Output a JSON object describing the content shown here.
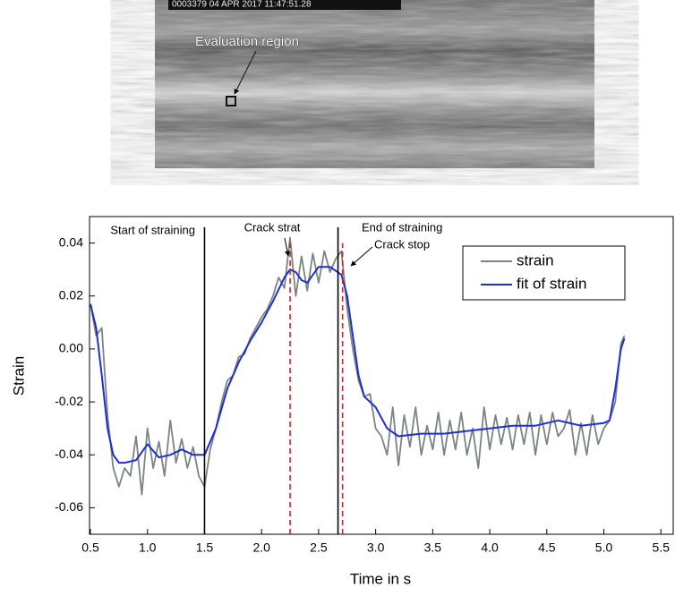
{
  "figure_image": {
    "timestamp": "0003379 04 APR 2017 11:47:51.28",
    "annotation": "Evaluation region"
  },
  "chart_data": {
    "type": "line",
    "x_label": "Time in s",
    "y_label": "Strain",
    "xlim": [
      0.5,
      5.6
    ],
    "ylim": [
      -0.07,
      0.05
    ],
    "xticks": [
      0.5,
      {
        "value": 1,
        "label": "1.0"
      },
      1.5,
      {
        "value": 2,
        "label": "2.0"
      },
      2.5,
      {
        "value": 3,
        "label": "3.0"
      },
      3.5,
      {
        "value": 4,
        "label": "4.0"
      },
      4.5,
      {
        "value": 5,
        "label": "5.0"
      },
      5.5
    ],
    "yticks": [
      -0.06,
      -0.04,
      -0.02,
      {
        "value": 0,
        "label": "0.00"
      },
      0.02,
      0.04
    ],
    "legend": "upper right",
    "series": [
      {
        "name": "strain",
        "color": "#7a8580",
        "x": [
          0.5,
          0.55,
          0.6,
          0.65,
          0.7,
          0.75,
          0.8,
          0.85,
          0.9,
          0.95,
          1.0,
          1.05,
          1.1,
          1.15,
          1.2,
          1.25,
          1.3,
          1.35,
          1.4,
          1.45,
          1.5,
          1.55,
          1.6,
          1.65,
          1.7,
          1.75,
          1.8,
          1.85,
          1.9,
          1.95,
          2.0,
          2.05,
          2.1,
          2.15,
          2.2,
          2.25,
          2.3,
          2.35,
          2.4,
          2.45,
          2.5,
          2.55,
          2.6,
          2.65,
          2.7,
          2.75,
          2.8,
          2.85,
          2.9,
          2.95,
          3.0,
          3.05,
          3.1,
          3.15,
          3.2,
          3.25,
          3.3,
          3.35,
          3.4,
          3.45,
          3.5,
          3.55,
          3.6,
          3.65,
          3.7,
          3.75,
          3.8,
          3.85,
          3.9,
          3.95,
          4.0,
          4.05,
          4.1,
          4.15,
          4.2,
          4.25,
          4.3,
          4.35,
          4.4,
          4.45,
          4.5,
          4.55,
          4.6,
          4.65,
          4.7,
          4.75,
          4.8,
          4.85,
          4.9,
          4.95,
          5.0,
          5.05,
          5.1,
          5.15,
          5.18
        ],
        "values": [
          0.017,
          0.005,
          0.008,
          -0.025,
          -0.045,
          -0.052,
          -0.045,
          -0.048,
          -0.033,
          -0.055,
          -0.03,
          -0.045,
          -0.035,
          -0.048,
          -0.027,
          -0.043,
          -0.034,
          -0.045,
          -0.037,
          -0.048,
          -0.052,
          -0.038,
          -0.03,
          -0.02,
          -0.012,
          -0.01,
          -0.003,
          -0.002,
          0.004,
          0.008,
          0.012,
          0.015,
          0.02,
          0.027,
          0.023,
          0.042,
          0.02,
          0.035,
          0.022,
          0.036,
          0.025,
          0.037,
          0.029,
          0.034,
          0.037,
          0.015,
          0.0,
          -0.012,
          -0.018,
          -0.017,
          -0.03,
          -0.033,
          -0.04,
          -0.022,
          -0.044,
          -0.025,
          -0.037,
          -0.022,
          -0.04,
          -0.029,
          -0.038,
          -0.024,
          -0.04,
          -0.027,
          -0.038,
          -0.024,
          -0.04,
          -0.03,
          -0.045,
          -0.022,
          -0.038,
          -0.025,
          -0.036,
          -0.026,
          -0.038,
          -0.025,
          -0.036,
          -0.024,
          -0.04,
          -0.025,
          -0.036,
          -0.024,
          -0.033,
          -0.03,
          -0.023,
          -0.04,
          -0.028,
          -0.04,
          -0.025,
          -0.036,
          -0.03,
          -0.027,
          -0.02,
          0.002,
          0.005
        ]
      },
      {
        "name": "fit of strain",
        "color": "#1f2fd0",
        "x": [
          0.5,
          0.55,
          0.6,
          0.65,
          0.7,
          0.75,
          0.8,
          0.9,
          1.0,
          1.1,
          1.2,
          1.3,
          1.4,
          1.5,
          1.6,
          1.7,
          1.8,
          1.9,
          2.0,
          2.1,
          2.2,
          2.25,
          2.3,
          2.35,
          2.4,
          2.45,
          2.5,
          2.6,
          2.7,
          2.75,
          2.8,
          2.85,
          2.9,
          3.0,
          3.1,
          3.2,
          3.4,
          3.6,
          3.8,
          4.0,
          4.2,
          4.4,
          4.6,
          4.8,
          5.0,
          5.05,
          5.1,
          5.15,
          5.18
        ],
        "values": [
          0.017,
          0.008,
          -0.01,
          -0.03,
          -0.04,
          -0.043,
          -0.043,
          -0.042,
          -0.036,
          -0.041,
          -0.04,
          -0.038,
          -0.04,
          -0.04,
          -0.03,
          -0.015,
          -0.005,
          0.003,
          0.01,
          0.018,
          0.027,
          0.03,
          0.029,
          0.026,
          0.025,
          0.028,
          0.031,
          0.031,
          0.028,
          0.02,
          0.005,
          -0.01,
          -0.018,
          -0.022,
          -0.03,
          -0.033,
          -0.032,
          -0.032,
          -0.031,
          -0.03,
          -0.029,
          -0.029,
          -0.027,
          -0.029,
          -0.028,
          -0.027,
          -0.015,
          0.0,
          0.004
        ]
      }
    ],
    "markers": [
      {
        "label": "Start of straining",
        "x": 1.5,
        "color": "#000000",
        "dashed": false
      },
      {
        "label": "Crack strat",
        "x": 2.25,
        "color": "#c0272d",
        "dashed": true
      },
      {
        "label": "End of straining",
        "x": 2.67,
        "color": "#000000",
        "dashed": false
      },
      {
        "label": "Crack stop",
        "x": 2.71,
        "color": "#c0272d",
        "dashed": true
      }
    ]
  }
}
